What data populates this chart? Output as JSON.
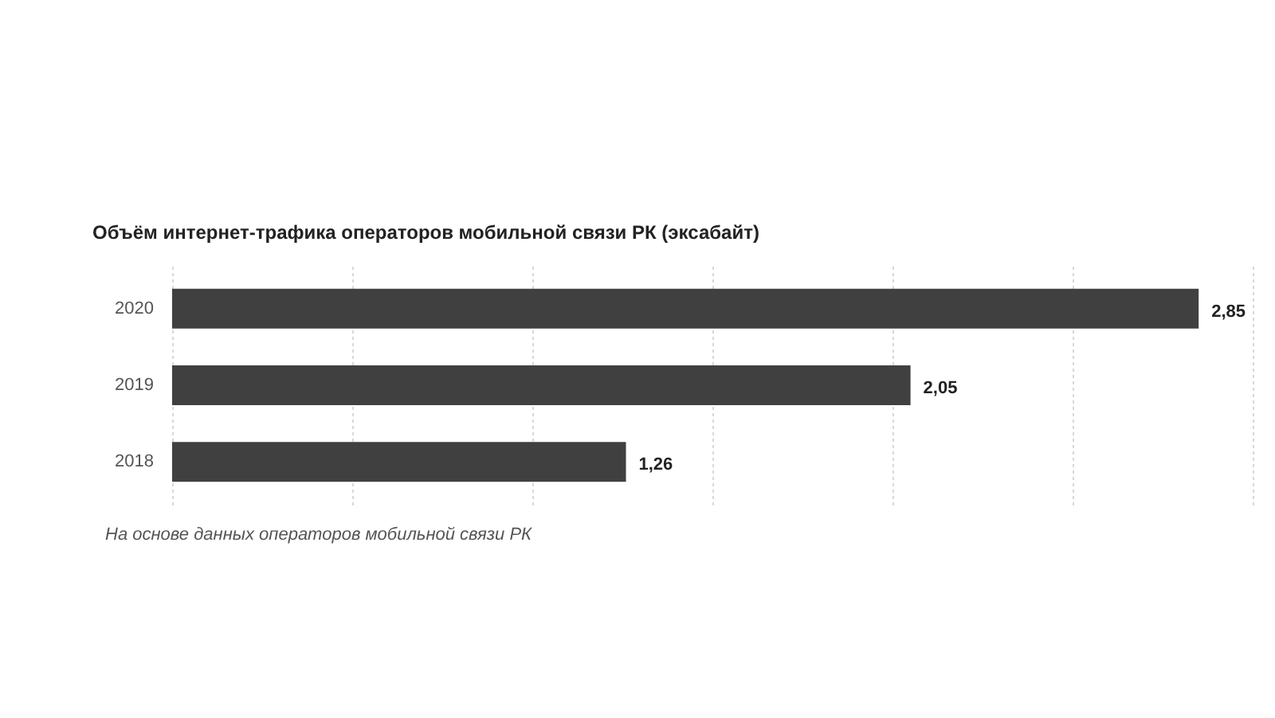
{
  "chart_data": {
    "type": "bar",
    "orientation": "horizontal",
    "title": "Объём интернет-трафика операторов мобильной связи РК (эксабайт)",
    "categories": [
      "2020",
      "2019",
      "2018"
    ],
    "values": [
      2.85,
      2.05,
      1.26
    ],
    "value_labels": [
      "2,85",
      "2,05",
      "1,26"
    ],
    "color": "#404040",
    "xlim": [
      0,
      3
    ],
    "xticks": [
      {
        "value": 0,
        "label": null
      },
      {
        "value": 0.5,
        "label": null
      },
      {
        "value": 1,
        "label": null
      },
      {
        "value": 1.5,
        "label": null
      },
      {
        "value": 2,
        "label": null
      },
      {
        "value": 2.5,
        "label": null
      },
      {
        "value": 3,
        "label": null
      }
    ],
    "grid": "x",
    "tick_labels": "y",
    "annotations": [
      "На основе данных операторов мобильной связи РК"
    ]
  }
}
